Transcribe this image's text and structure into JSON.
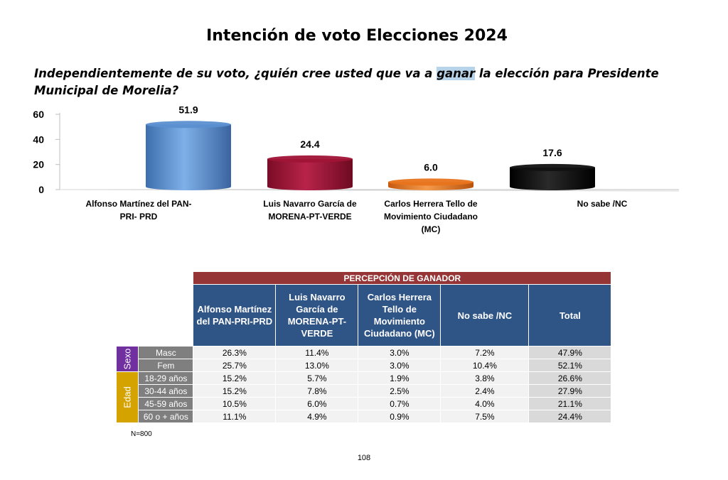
{
  "document": {
    "title": "Intención de voto Elecciones 2024",
    "question_before": "Independientemente de su voto, ¿quién cree usted que va a ",
    "question_highlight": "ganar",
    "question_after": " la elección para Presidente Municipal de Morelia?",
    "page_number": "108"
  },
  "chart_data": {
    "type": "bar",
    "categories": [
      [
        "Alfonso Martínez del PAN-",
        "PRI- PRD"
      ],
      [
        "Luis Navarro García de",
        "MORENA-PT-VERDE"
      ],
      [
        "Carlos Herrera Tello de",
        "Movimiento Ciudadano",
        "(MC)"
      ],
      [
        "No sabe /NC"
      ]
    ],
    "values": [
      51.9,
      24.4,
      6.0,
      17.6
    ],
    "value_labels": [
      "51.9",
      "24.4",
      "6.0",
      "17.6"
    ],
    "colors": [
      "#5b8fd0",
      "#a01436",
      "#e8731c",
      "#111111"
    ],
    "y_ticks": [
      "0",
      "20",
      "40",
      "60"
    ],
    "ylim": [
      0,
      60
    ],
    "grid": false,
    "legend": "none"
  },
  "table": {
    "banner": "PERCEPCIÓN DE GANADOR",
    "columns": [
      "Alfonso Martínez del PAN-PRI-PRD",
      "Luis Navarro García de MORENA-PT-VERDE",
      "Carlos Herrera Tello de Movimiento Ciudadano (MC)",
      "No sabe /NC",
      "Total"
    ],
    "groups": [
      {
        "name": "Sexo",
        "rows": [
          {
            "label": "Masc",
            "values": [
              "26.3%",
              "11.4%",
              "3.0%",
              "7.2%",
              "47.9%"
            ]
          },
          {
            "label": "Fem",
            "values": [
              "25.7%",
              "13.0%",
              "3.0%",
              "10.4%",
              "52.1%"
            ]
          }
        ]
      },
      {
        "name": "Edad",
        "rows": [
          {
            "label": "18-29 años",
            "values": [
              "15.2%",
              "5.7%",
              "1.9%",
              "3.8%",
              "26.6%"
            ]
          },
          {
            "label": "30-44 años",
            "values": [
              "15.2%",
              "7.8%",
              "2.5%",
              "2.4%",
              "27.9%"
            ]
          },
          {
            "label": "45-59 años",
            "values": [
              "10.5%",
              "6.0%",
              "0.7%",
              "4.0%",
              "21.1%"
            ]
          },
          {
            "label": "60 o + años",
            "values": [
              "11.1%",
              "4.9%",
              "0.9%",
              "7.5%",
              "24.4%"
            ]
          }
        ]
      }
    ],
    "note": "N=800"
  }
}
